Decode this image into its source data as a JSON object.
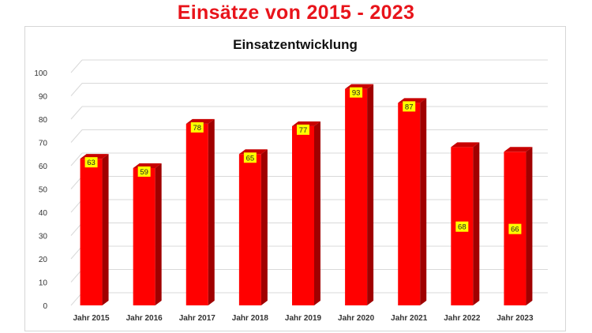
{
  "page": {
    "title": "Einsätze von 2015 - 2023"
  },
  "chart_data": {
    "type": "bar",
    "title": "Einsatzentwicklung",
    "categories": [
      "Jahr 2015",
      "Jahr 2016",
      "Jahr 2017",
      "Jahr 2018",
      "Jahr 2019",
      "Jahr 2020",
      "Jahr 2021",
      "Jahr 2022",
      "Jahr 2023"
    ],
    "values": [
      63,
      59,
      78,
      65,
      77,
      93,
      87,
      68,
      66
    ],
    "ylim": [
      0,
      100
    ],
    "yticks": [
      0,
      10,
      20,
      30,
      40,
      50,
      60,
      70,
      80,
      90,
      100
    ],
    "xlabel": "",
    "ylabel": "",
    "grid": true,
    "legend": "none",
    "style": "3d-column",
    "colors": {
      "bar_front": "#ff0000",
      "bar_side": "#a00000",
      "bar_top": "#c80000",
      "label_bg": "#ffff00",
      "gridline": "#d9d9d9"
    }
  }
}
